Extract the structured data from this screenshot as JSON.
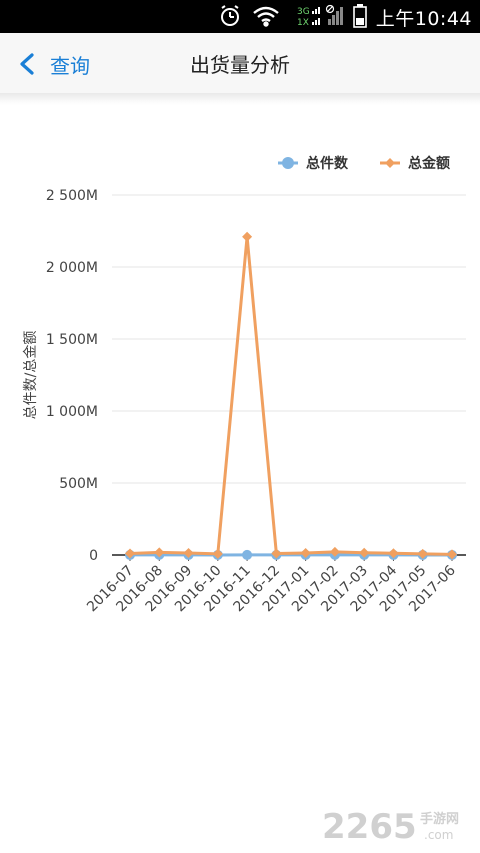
{
  "status_bar": {
    "time": "上午10:44",
    "network_label_top": "3G",
    "network_label_bottom": "1X"
  },
  "header": {
    "back_label": "查询",
    "title": "出货量分析"
  },
  "chart_data": {
    "type": "line",
    "categories": [
      "2016-07",
      "2016-08",
      "2016-09",
      "2016-10",
      "2016-11",
      "2016-12",
      "2017-01",
      "2017-02",
      "2017-03",
      "2017-04",
      "2017-05",
      "2017-06"
    ],
    "series": [
      {
        "name": "总件数",
        "color": "#7fb4e2",
        "marker": "circle",
        "values": [
          0.5,
          0.8,
          0.6,
          0.4,
          0.6,
          0.5,
          0.6,
          0.7,
          0.6,
          0.5,
          0.4,
          0.3
        ]
      },
      {
        "name": "总金额",
        "color": "#f0a060",
        "marker": "diamond",
        "values": [
          10,
          18,
          14,
          8,
          2210,
          10,
          14,
          22,
          16,
          12,
          8,
          4
        ]
      }
    ],
    "yticks": [
      0,
      500,
      1000,
      1500,
      2000,
      2500
    ],
    "ytick_labels": [
      "0",
      "500M",
      "1 000M",
      "1 500M",
      "2 000M",
      "2 500M"
    ],
    "ylabel": "总件数/总金额",
    "ylim": [
      0,
      2500
    ],
    "legend_position": "top-right",
    "grid": true
  },
  "watermark": {
    "brand": "2265",
    "suffix": "手游网",
    "domain": ".com"
  }
}
